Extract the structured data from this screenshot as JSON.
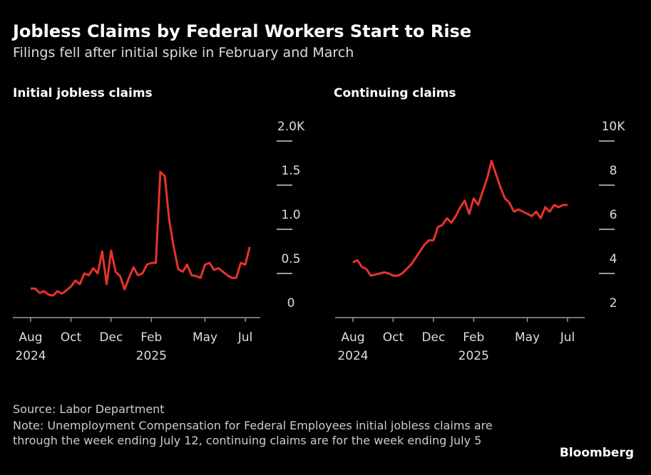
{
  "title": "Jobless Claims by Federal Workers Start to Rise",
  "subtitle": "Filings fell after initial spike in February and March",
  "source": "Source: Labor Department",
  "note": "Note: Unemployment Compensation for Federal Employees initial jobless claims are through the week ending July 12, continuing claims are for the week ending July 5",
  "logo": "Bloomberg",
  "chart_data": [
    {
      "type": "line",
      "title": "Initial jobless claims",
      "color": "#e8332a",
      "categories": [
        "Aug 2024",
        null,
        null,
        null,
        null,
        null,
        null,
        null,
        null,
        "Oct",
        null,
        null,
        null,
        null,
        null,
        null,
        null,
        null,
        "Dec",
        null,
        null,
        null,
        null,
        null,
        null,
        null,
        null,
        "Feb 2025",
        null,
        null,
        null,
        null,
        null,
        null,
        null,
        null,
        null,
        null,
        null,
        "May",
        null,
        null,
        null,
        null,
        null,
        null,
        null,
        null,
        "Jul",
        null
      ],
      "values": [
        0.33,
        0.33,
        0.28,
        0.3,
        0.26,
        0.25,
        0.3,
        0.27,
        0.31,
        0.35,
        0.42,
        0.38,
        0.5,
        0.48,
        0.56,
        0.5,
        0.75,
        0.38,
        0.76,
        0.52,
        0.47,
        0.32,
        0.45,
        0.57,
        0.48,
        0.5,
        0.6,
        0.62,
        0.62,
        1.65,
        1.6,
        1.1,
        0.8,
        0.55,
        0.52,
        0.6,
        0.48,
        0.47,
        0.45,
        0.6,
        0.62,
        0.54,
        0.56,
        0.52,
        0.48,
        0.45,
        0.45,
        0.62,
        0.6,
        0.8
      ],
      "ylim": [
        0,
        2
      ],
      "yticks": [
        0,
        0.5,
        {
          "value": 1,
          "label": "1.0"
        },
        1.5,
        {
          "value": 2,
          "label": "2.0K"
        }
      ]
    },
    {
      "type": "line",
      "title": "Continuing claims",
      "color": "#e8332a",
      "categories": [
        "Aug 2024",
        null,
        null,
        null,
        null,
        null,
        null,
        null,
        null,
        "Oct",
        null,
        null,
        null,
        null,
        null,
        null,
        null,
        null,
        "Dec",
        null,
        null,
        null,
        null,
        null,
        null,
        null,
        null,
        "Feb 2025",
        null,
        null,
        null,
        null,
        null,
        null,
        null,
        null,
        null,
        null,
        null,
        "May",
        null,
        null,
        null,
        null,
        null,
        null,
        null,
        null,
        "Jul",
        null
      ],
      "values": [
        4.5,
        4.6,
        4.3,
        4.2,
        3.9,
        3.95,
        4.0,
        4.05,
        4.0,
        3.9,
        3.9,
        4.0,
        4.2,
        4.4,
        4.7,
        5.0,
        5.3,
        5.5,
        5.5,
        6.1,
        6.2,
        6.5,
        6.3,
        6.6,
        7.0,
        7.3,
        6.7,
        7.4,
        7.1,
        7.7,
        8.3,
        9.1,
        8.5,
        7.9,
        7.4,
        7.2,
        6.8,
        6.9,
        6.8,
        6.7,
        6.6,
        6.8,
        6.5,
        7.0,
        6.8,
        7.1,
        7.0,
        7.1,
        7.1,
        null
      ],
      "ylim": [
        2,
        10
      ],
      "yticks": [
        2,
        4,
        6,
        8,
        {
          "value": 10,
          "label": "10K"
        }
      ]
    }
  ]
}
